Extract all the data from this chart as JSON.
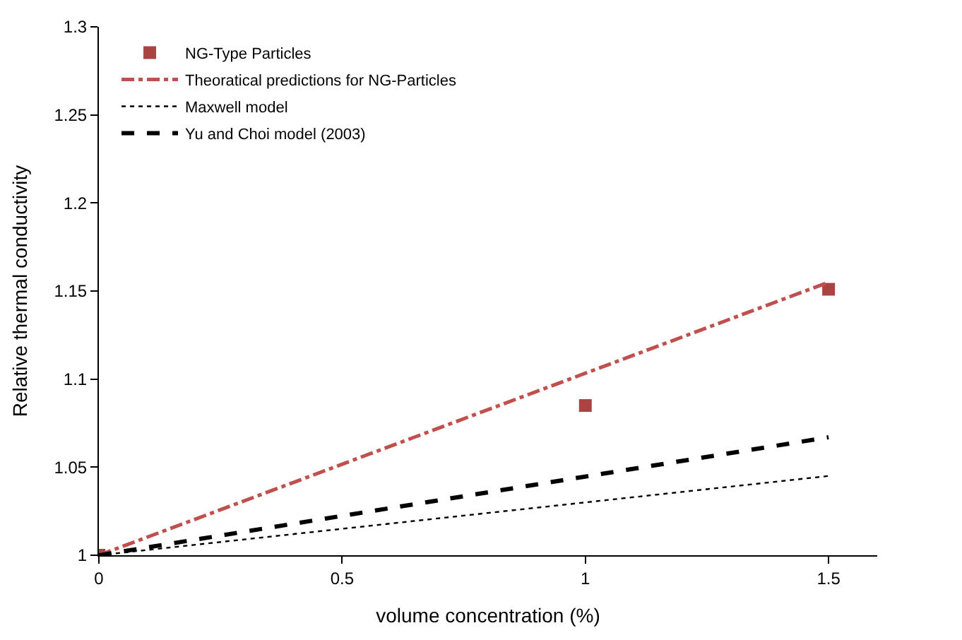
{
  "chart_data": {
    "type": "line",
    "xlabel": "volume concentration (%)",
    "ylabel": "Relative thermal conductivity",
    "xlim": [
      0,
      1.6
    ],
    "xticks": [
      0,
      0.5,
      1,
      1.5
    ],
    "ylim": [
      1,
      1.3
    ],
    "yticks": [
      1,
      1.05,
      1.1,
      1.15,
      1.2,
      1.25,
      1.3
    ],
    "legend": "top left",
    "series": [
      {
        "name": "NG-Type Particles",
        "type": "scatter",
        "marker": "square",
        "color": "#a94442",
        "x": [
          0,
          1,
          1.5
        ],
        "values": [
          1.0,
          1.085,
          1.151
        ]
      },
      {
        "name": "Theoratical predictions for NG-Particles",
        "line_style": "dashdot",
        "color": "#c0504d",
        "x": [
          0,
          1.5
        ],
        "values": [
          1.0,
          1.155
        ]
      },
      {
        "name": "Maxwell model",
        "line_style": "dotted",
        "color": "#000000",
        "x": [
          0,
          1.5
        ],
        "values": [
          1.0,
          1.045
        ]
      },
      {
        "name": "Yu and Choi model (2003)",
        "line_style": "dashed",
        "color": "#000000",
        "x": [
          0,
          1.5
        ],
        "values": [
          1.0,
          1.067
        ]
      }
    ]
  }
}
